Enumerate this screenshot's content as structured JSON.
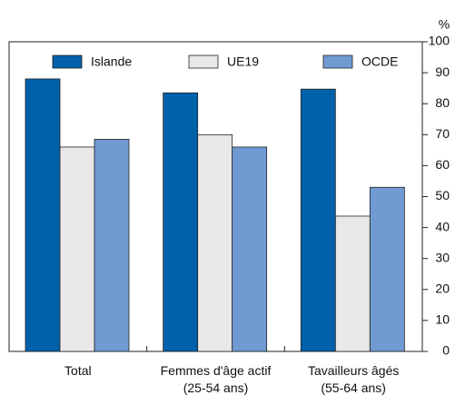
{
  "chart_data": {
    "type": "bar",
    "y_unit": "%",
    "categories": [
      "Total",
      "Femmes d'âge actif\n(25-54 ans)",
      "Tavailleurs âgés\n(55-64 ans)"
    ],
    "series": [
      {
        "name": "Islande",
        "color": "#0060aa",
        "values": [
          88,
          83.5,
          84.7
        ]
      },
      {
        "name": "UE19",
        "color": "#e8e8e8",
        "values": [
          66,
          70,
          43.7
        ]
      },
      {
        "name": "OCDE",
        "color": "#6f9ad2",
        "values": [
          68.5,
          66,
          53
        ]
      }
    ],
    "ylim": [
      0,
      100
    ],
    "yticks": [
      0,
      10,
      20,
      30,
      40,
      50,
      60,
      70,
      80,
      90,
      100
    ],
    "legend": "top"
  }
}
